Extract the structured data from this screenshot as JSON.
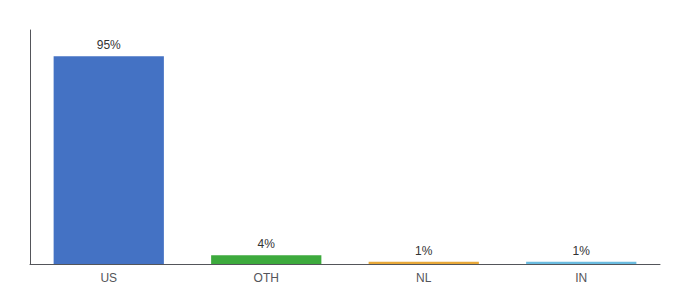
{
  "chart_data": {
    "type": "bar",
    "categories": [
      "US",
      "OTH",
      "NL",
      "IN"
    ],
    "values": [
      95,
      4,
      1,
      1
    ],
    "value_labels": [
      "95%",
      "4%",
      "1%",
      "1%"
    ],
    "colors": [
      "#4472c4",
      "#3daa3d",
      "#e8a838",
      "#6bbce0"
    ],
    "ylim": [
      0,
      107
    ],
    "data_labels": true,
    "tick_labels": "x",
    "grid": false
  }
}
